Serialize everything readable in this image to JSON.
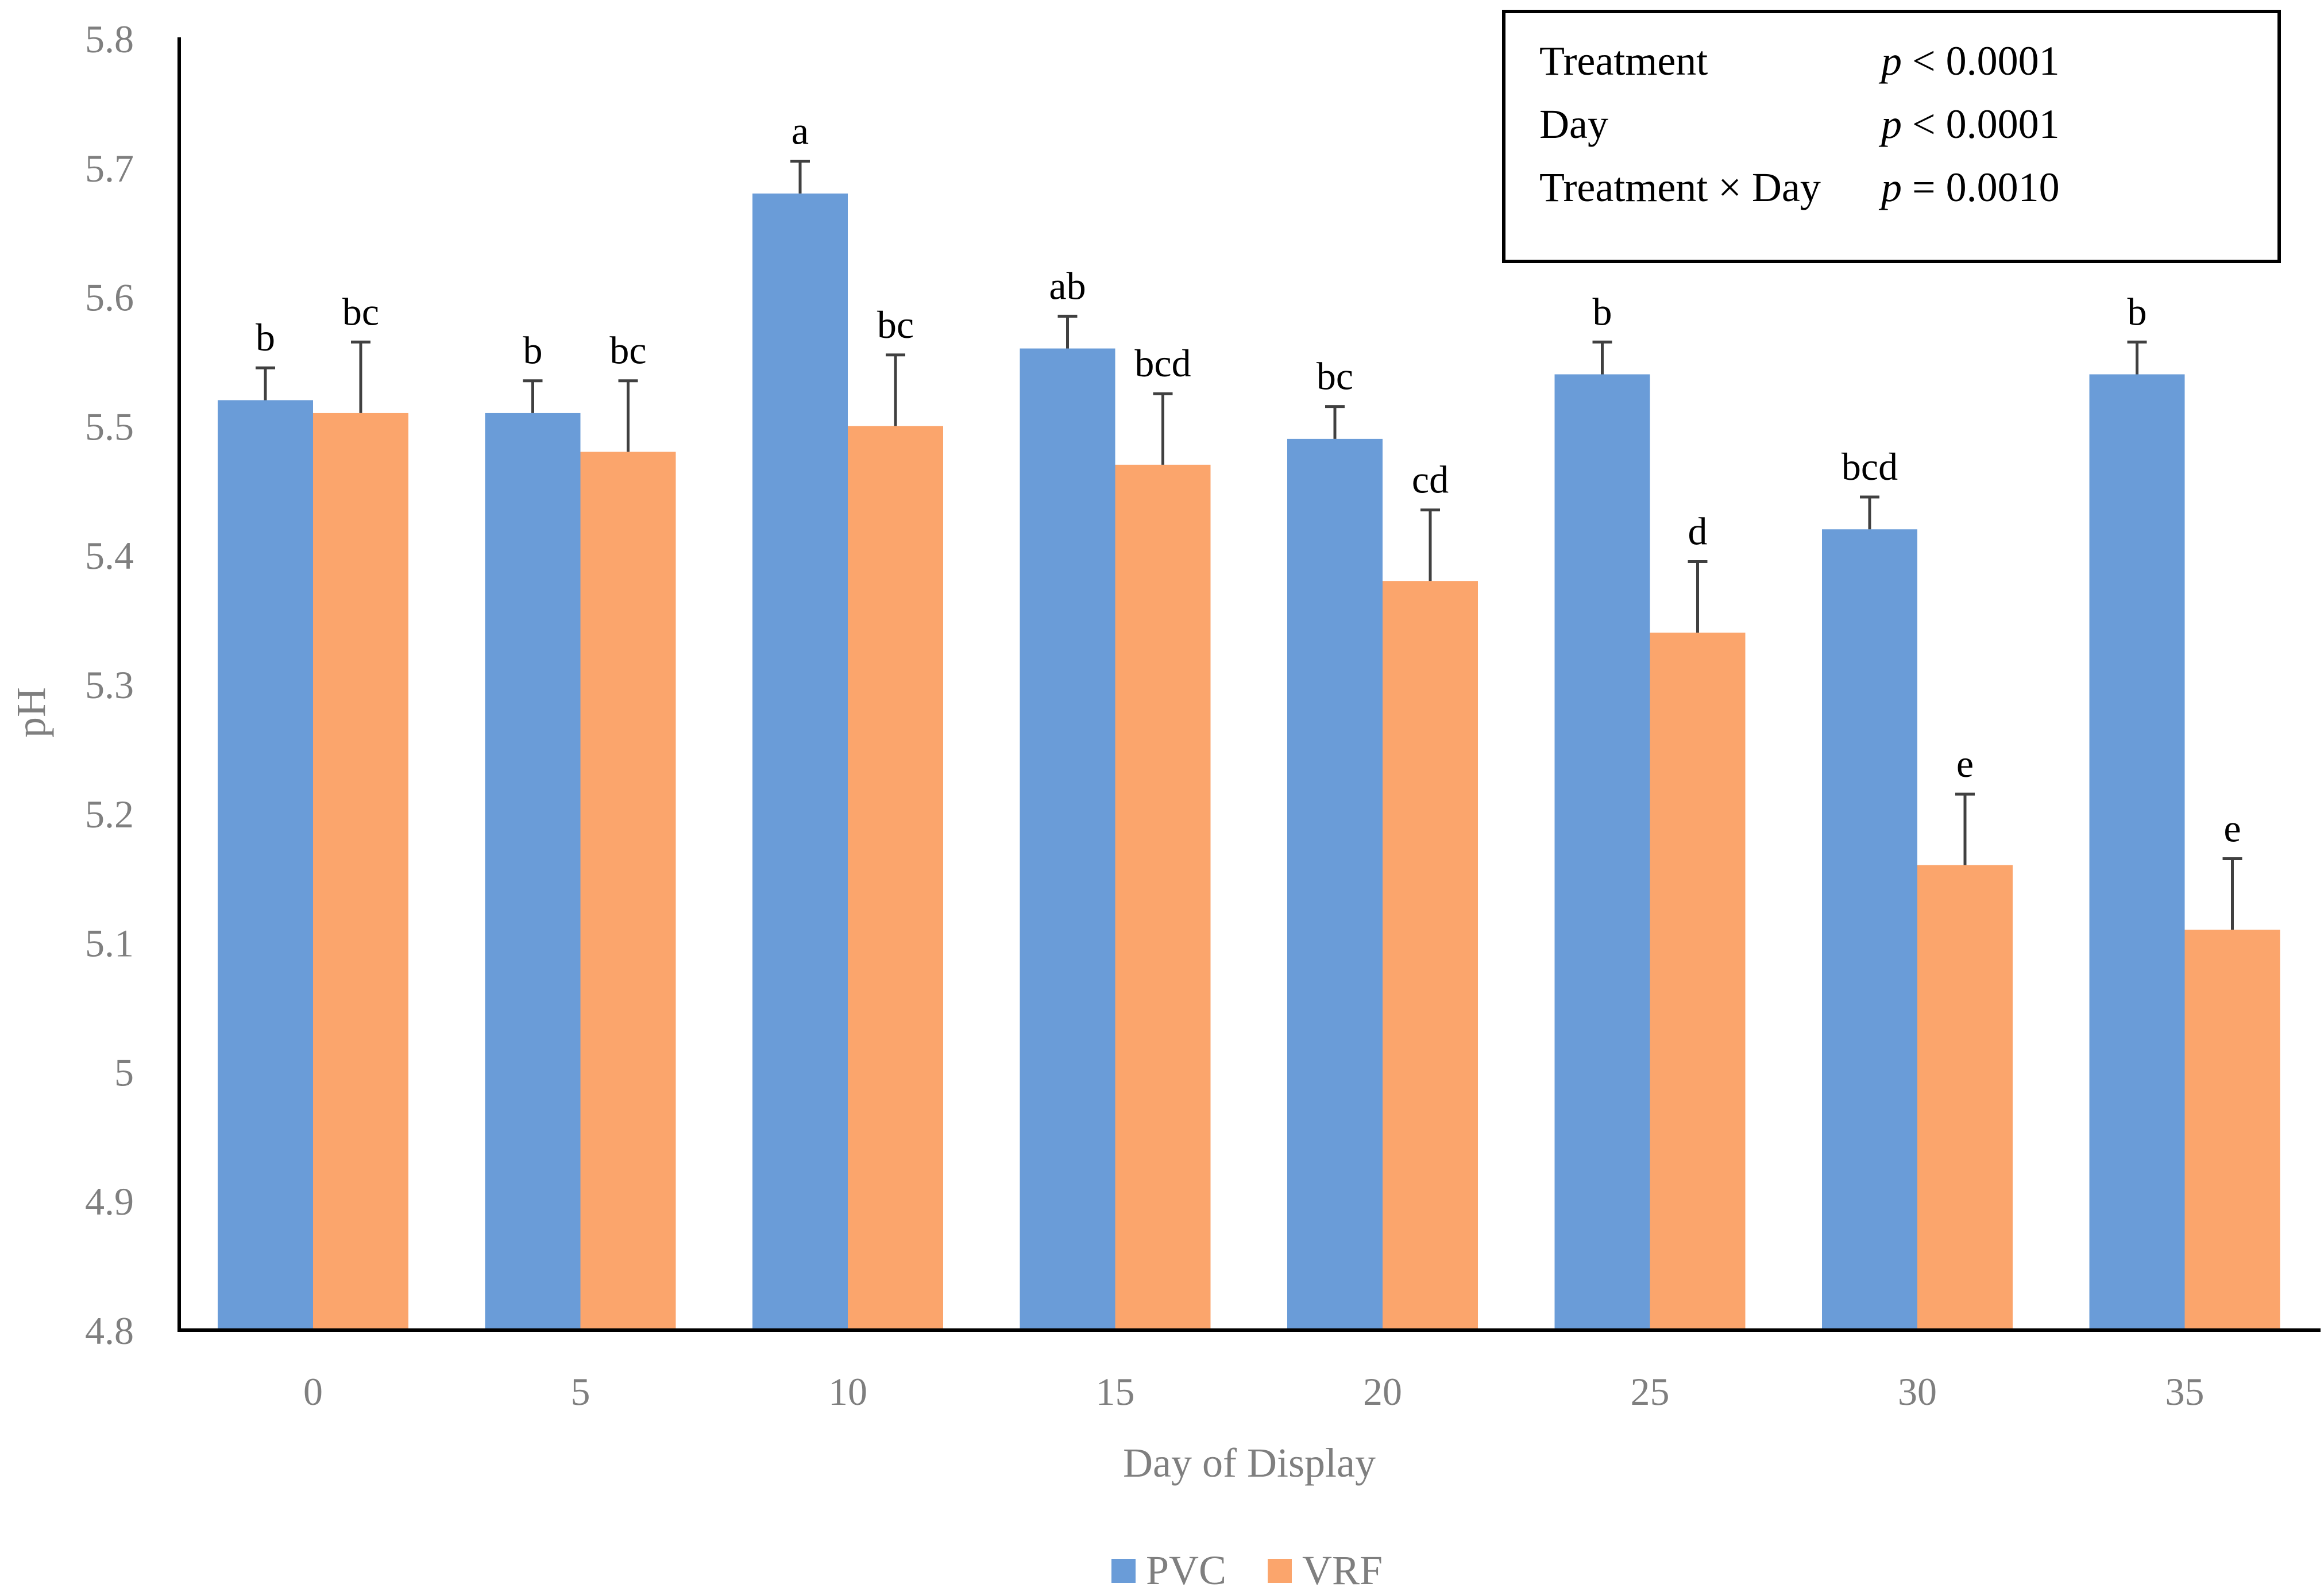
{
  "chart_data": {
    "type": "bar",
    "title": "",
    "xlabel": "Day of Display",
    "ylabel": "pH",
    "ylim": [
      4.8,
      5.8
    ],
    "yticks": [
      "5.8",
      "5.7",
      "5.6",
      "5.5",
      "5.4",
      "5.3",
      "5.2",
      "5.1",
      "5",
      "4.9",
      "4.8"
    ],
    "categories": [
      "0",
      "5",
      "10",
      "15",
      "20",
      "25",
      "30",
      "35"
    ],
    "series": [
      {
        "name": "PVC",
        "color": "#6a9cd8",
        "values": [
          5.52,
          5.51,
          5.68,
          5.56,
          5.49,
          5.54,
          5.42,
          5.54
        ],
        "errors": [
          0.025,
          0.025,
          0.025,
          0.025,
          0.025,
          0.025,
          0.025,
          0.025
        ],
        "labels": [
          "b",
          "b",
          "a",
          "ab",
          "bc",
          "b",
          "bcd",
          "b"
        ]
      },
      {
        "name": "VRF",
        "color": "#fba56c",
        "values": [
          5.51,
          5.48,
          5.5,
          5.47,
          5.38,
          5.34,
          5.16,
          5.11
        ],
        "errors": [
          0.055,
          0.055,
          0.055,
          0.055,
          0.055,
          0.055,
          0.055,
          0.055
        ],
        "labels": [
          "bc",
          "bc",
          "bc",
          "bcd",
          "cd",
          "d",
          "e",
          "e"
        ]
      }
    ],
    "grid": false,
    "legend": "bottom-center",
    "stats_box": [
      {
        "term": "Treatment",
        "p_symbol": "p",
        "relation": "< 0.0001"
      },
      {
        "term": "Day",
        "p_symbol": "p",
        "relation": "< 0.0001"
      },
      {
        "term": "Treatment × Day",
        "p_symbol": "p",
        "relation": "= 0.0010"
      }
    ]
  }
}
